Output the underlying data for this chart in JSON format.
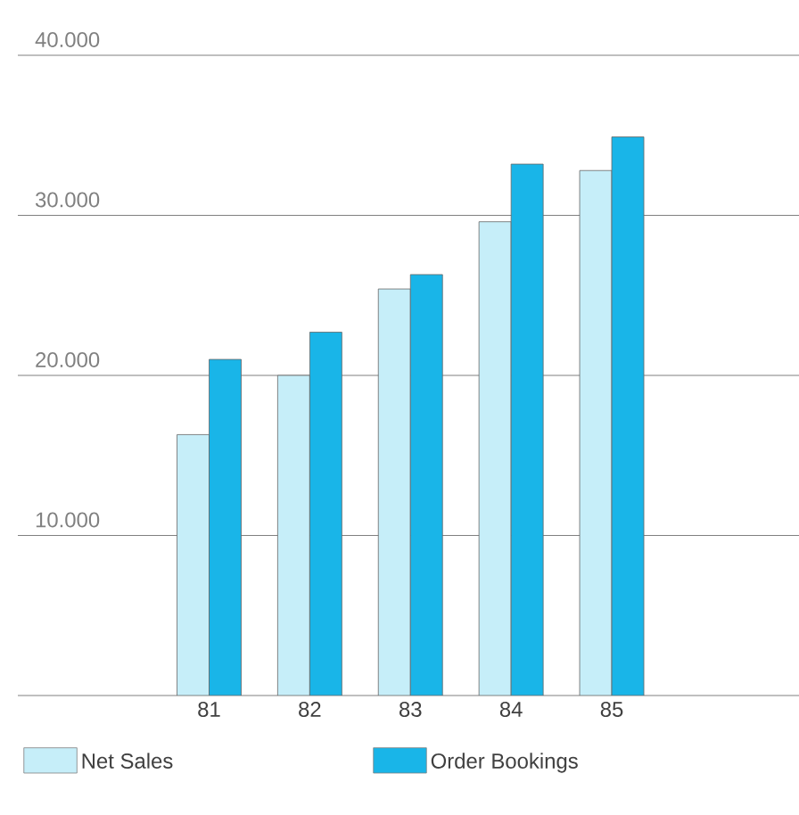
{
  "chart_data": {
    "type": "bar",
    "categories": [
      "81",
      "82",
      "83",
      "84",
      "85"
    ],
    "series": [
      {
        "name": "Net Sales",
        "color": "#c6eef9",
        "values": [
          16300,
          20000,
          25400,
          29600,
          32800
        ]
      },
      {
        "name": "Order Bookings",
        "color": "#19b5e8",
        "values": [
          21000,
          22700,
          26300,
          33200,
          34900
        ]
      }
    ],
    "ylim": [
      0,
      40000
    ],
    "yticks": [
      {
        "value": 0,
        "label": null
      },
      {
        "value": 10000,
        "label": "10.000"
      },
      {
        "value": 20000,
        "label": "20.000"
      },
      {
        "value": 30000,
        "label": "30.000"
      },
      {
        "value": 40000,
        "label": "40.000"
      }
    ],
    "grid": "y",
    "legend": "bottom"
  }
}
